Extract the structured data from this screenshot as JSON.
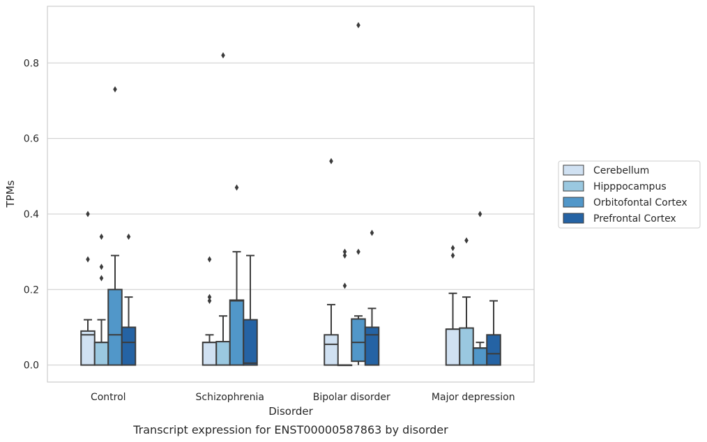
{
  "chart_data": {
    "type": "box",
    "caption": "Transcript expression for ENST00000587863 by disorder",
    "xlabel": "Disorder",
    "ylabel": "TPMs",
    "ylim": [
      -0.045,
      0.95
    ],
    "yticks": [
      "0.0",
      "0.2",
      "0.4",
      "0.6",
      "0.8"
    ],
    "grid": "horizontal",
    "legend_position": "right",
    "categories": [
      "Control",
      "Schizophrenia",
      "Bipolar disorder",
      "Major depression"
    ],
    "series": [
      {
        "name": "Cerebellum",
        "color": "#d0e1f2",
        "boxes": [
          {
            "q1": 0.0,
            "median": 0.08,
            "q3": 0.09,
            "whislo": 0.0,
            "whishi": 0.12,
            "fliers": [
              0.28,
              0.4
            ]
          },
          {
            "q1": 0.0,
            "median": 0.06,
            "q3": 0.06,
            "whislo": 0.0,
            "whishi": 0.08,
            "fliers": [
              0.17,
              0.18,
              0.28
            ]
          },
          {
            "q1": 0.0,
            "median": 0.055,
            "q3": 0.08,
            "whislo": 0.0,
            "whishi": 0.16,
            "fliers": [
              0.54
            ]
          },
          {
            "q1": 0.0,
            "median": 0.095,
            "q3": 0.095,
            "whislo": 0.0,
            "whishi": 0.19,
            "fliers": [
              0.29,
              0.31
            ]
          }
        ]
      },
      {
        "name": "Hipppocampus",
        "color": "#9ac8e0",
        "boxes": [
          {
            "q1": 0.0,
            "median": 0.06,
            "q3": 0.06,
            "whislo": 0.0,
            "whishi": 0.12,
            "fliers": [
              0.23,
              0.26,
              0.34
            ]
          },
          {
            "q1": 0.0,
            "median": 0.062,
            "q3": 0.062,
            "whislo": 0.0,
            "whishi": 0.13,
            "fliers": [
              0.82
            ]
          },
          {
            "q1": 0.0,
            "median": 0.0,
            "q3": 0.0,
            "whislo": 0.0,
            "whishi": 0.0,
            "fliers": [
              0.21,
              0.29,
              0.3
            ]
          },
          {
            "q1": 0.0,
            "median": 0.098,
            "q3": 0.098,
            "whislo": 0.0,
            "whishi": 0.18,
            "fliers": [
              0.33
            ]
          }
        ]
      },
      {
        "name": "Orbitofontal Cortex",
        "color": "#5197c9",
        "boxes": [
          {
            "q1": 0.0,
            "median": 0.08,
            "q3": 0.2,
            "whislo": 0.0,
            "whishi": 0.29,
            "fliers": [
              0.73
            ]
          },
          {
            "q1": 0.0,
            "median": 0.17,
            "q3": 0.172,
            "whislo": 0.0,
            "whishi": 0.3,
            "fliers": [
              0.47
            ]
          },
          {
            "q1": 0.01,
            "median": 0.06,
            "q3": 0.122,
            "whislo": 0.0,
            "whishi": 0.13,
            "fliers": [
              0.3,
              0.9
            ]
          },
          {
            "q1": 0.0,
            "median": 0.045,
            "q3": 0.045,
            "whislo": 0.0,
            "whishi": 0.06,
            "fliers": [
              0.4
            ]
          }
        ]
      },
      {
        "name": "Prefrontal Cortex",
        "color": "#2563a4",
        "boxes": [
          {
            "q1": 0.0,
            "median": 0.06,
            "q3": 0.1,
            "whislo": 0.0,
            "whishi": 0.18,
            "fliers": [
              0.34
            ]
          },
          {
            "q1": 0.0,
            "median": 0.005,
            "q3": 0.12,
            "whislo": 0.0,
            "whishi": 0.29,
            "fliers": []
          },
          {
            "q1": 0.0,
            "median": 0.08,
            "q3": 0.1,
            "whislo": 0.0,
            "whishi": 0.15,
            "fliers": [
              0.35
            ]
          },
          {
            "q1": 0.0,
            "median": 0.03,
            "q3": 0.08,
            "whislo": 0.0,
            "whishi": 0.17,
            "fliers": []
          }
        ]
      }
    ]
  }
}
